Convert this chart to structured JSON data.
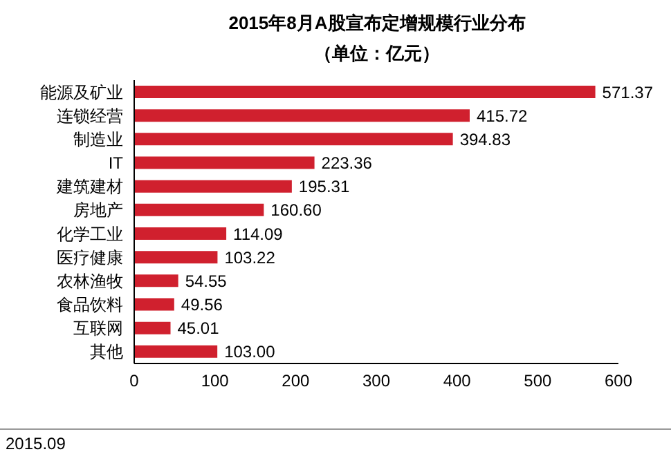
{
  "chart_data": {
    "type": "bar",
    "orientation": "horizontal",
    "title": "2015年8月A股宣布定增规模行业分布",
    "subtitle": "（单位：亿元）",
    "categories": [
      "能源及矿业",
      "连锁经营",
      "制造业",
      "IT",
      "建筑建材",
      "房地产",
      "化学工业",
      "医疗健康",
      "农林渔牧",
      "食品饮料",
      "互联网",
      "其他"
    ],
    "values": [
      571.37,
      415.72,
      394.83,
      223.36,
      195.31,
      160.6,
      114.09,
      103.22,
      54.55,
      49.56,
      45.01,
      103.0
    ],
    "value_labels": [
      "571.37",
      "415.72",
      "394.83",
      "223.36",
      "195.31",
      "160.60",
      "114.09",
      "103.22",
      "54.55",
      "49.56",
      "45.01",
      "103.00"
    ],
    "color": "#d0202e",
    "xlim": [
      0,
      600
    ],
    "xticks": [
      0,
      100,
      200,
      300,
      400,
      500,
      600
    ],
    "grid": false,
    "legend": false,
    "annotations": [
      "2015.09"
    ]
  }
}
